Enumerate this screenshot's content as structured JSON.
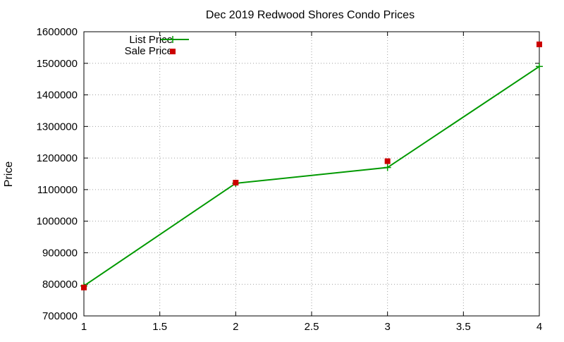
{
  "chart_data": {
    "type": "line",
    "title": "Dec 2019 Redwood Shores Condo Prices",
    "xlabel": "",
    "ylabel": "Price",
    "xlim": [
      1,
      4
    ],
    "ylim": [
      700000,
      1600000
    ],
    "x_ticks": [
      1,
      1.5,
      2,
      2.5,
      3,
      3.5,
      4
    ],
    "x_tick_labels": [
      "1",
      "1.5",
      "2",
      "2.5",
      "3",
      "3.5",
      "4"
    ],
    "y_ticks": [
      700000,
      800000,
      900000,
      1000000,
      1100000,
      1200000,
      1300000,
      1400000,
      1500000,
      1600000
    ],
    "y_tick_labels": [
      "700000",
      "800000",
      "900000",
      "1000000",
      "1100000",
      "1200000",
      "1300000",
      "1400000",
      "1500000",
      "1600000"
    ],
    "grid": true,
    "legend_position": "top-left",
    "series": [
      {
        "name": "List Price",
        "style": "linespoints",
        "marker": "plus",
        "color": "#009900",
        "x": [
          1,
          2,
          3,
          4
        ],
        "y": [
          795000,
          1120000,
          1170000,
          1490000
        ]
      },
      {
        "name": "Sale Price",
        "style": "points",
        "marker": "square",
        "color": "#cc0000",
        "x": [
          1,
          2,
          3,
          4
        ],
        "y": [
          790000,
          1122000,
          1190000,
          1560000
        ]
      }
    ]
  }
}
